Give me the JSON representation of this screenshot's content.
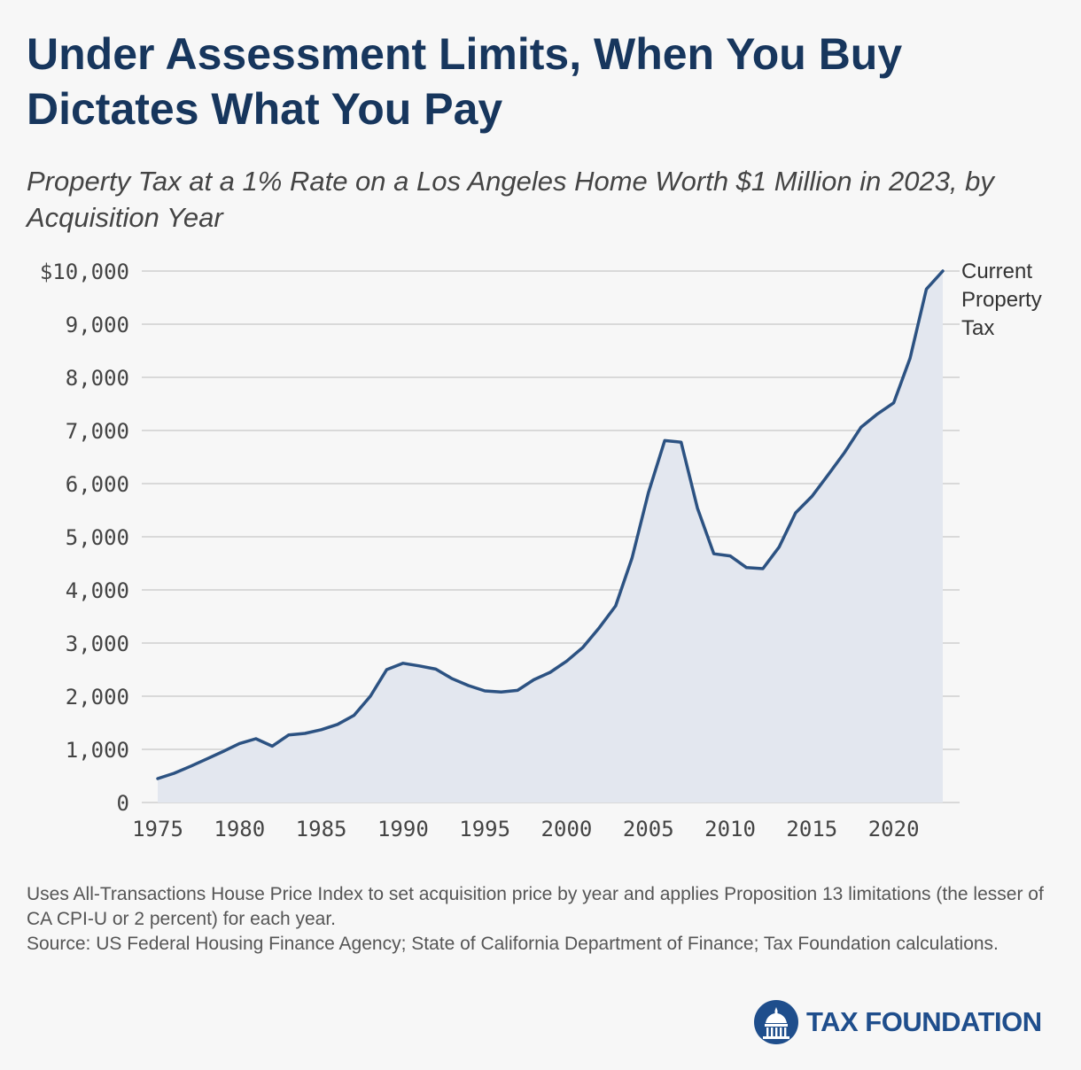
{
  "header": {
    "title": "Under Assessment Limits, When You Buy Dictates What You Pay",
    "subtitle": "Property Tax at a 1% Rate on a Los Angeles Home Worth $1 Million in 2023, by Acquisition Year"
  },
  "chart_data": {
    "type": "area",
    "title": "Under Assessment Limits, When You Buy Dictates What You Pay",
    "subtitle": "Property Tax at a 1% Rate on a Los Angeles Home Worth $1 Million in 2023, by Acquisition Year",
    "xlabel": "",
    "ylabel": "",
    "xlim": [
      1975,
      2023
    ],
    "ylim": [
      0,
      10000
    ],
    "x_ticks": [
      1975,
      1980,
      1985,
      1990,
      1995,
      2000,
      2005,
      2010,
      2015,
      2020
    ],
    "y_ticks": [
      0,
      1000,
      2000,
      3000,
      4000,
      5000,
      6000,
      7000,
      8000,
      9000,
      10000
    ],
    "y_tick_labels": [
      "0",
      "1,000",
      "2,000",
      "3,000",
      "4,000",
      "5,000",
      "6,000",
      "7,000",
      "8,000",
      "9,000",
      "$10,000"
    ],
    "x_tick_labels": [
      "1975",
      "1980",
      "1985",
      "1990",
      "1995",
      "2000",
      "2005",
      "2010",
      "2015",
      "2020"
    ],
    "grid": true,
    "series_color": "#2c5282",
    "fill_color": "#e3e7ef",
    "x": [
      1975,
      1976,
      1977,
      1978,
      1979,
      1980,
      1981,
      1982,
      1983,
      1984,
      1985,
      1986,
      1987,
      1988,
      1989,
      1990,
      1991,
      1992,
      1993,
      1994,
      1995,
      1996,
      1997,
      1998,
      1999,
      2000,
      2001,
      2002,
      2003,
      2004,
      2005,
      2006,
      2007,
      2008,
      2009,
      2010,
      2011,
      2012,
      2013,
      2014,
      2015,
      2016,
      2017,
      2018,
      2019,
      2020,
      2021,
      2022,
      2023
    ],
    "values": [
      450,
      550,
      680,
      820,
      960,
      1110,
      1200,
      1060,
      1270,
      1300,
      1370,
      1470,
      1640,
      2000,
      2500,
      2620,
      2570,
      2510,
      2330,
      2200,
      2100,
      2080,
      2110,
      2310,
      2450,
      2660,
      2920,
      3290,
      3700,
      4600,
      5830,
      6810,
      6780,
      5540,
      4680,
      4640,
      4420,
      4400,
      4810,
      5450,
      5760,
      6170,
      6590,
      7060,
      7310,
      7520,
      8360,
      9660,
      10000
    ],
    "annotation": "Current Property Tax",
    "annotation_lines": [
      "Current",
      "Property",
      "Tax"
    ]
  },
  "footer": {
    "note": "Uses All-Transactions House Price Index to set acquisition price by year and applies Proposition 13 limitations (the lesser of CA CPI-U or 2 percent) for each year.",
    "source": "Source: US Federal Housing Finance Agency; State of California Department of Finance; Tax Foundation calculations.",
    "brand": "TAX FOUNDATION",
    "brand_color": "#1f4e8c",
    "logo_icon": "capitol-dome-icon"
  }
}
